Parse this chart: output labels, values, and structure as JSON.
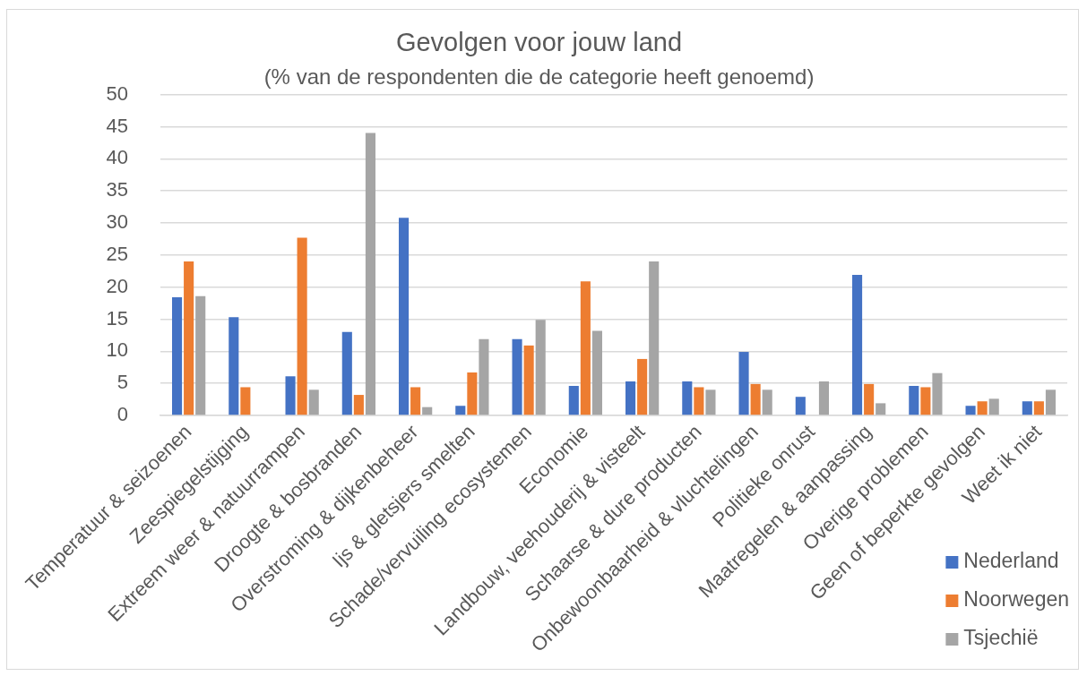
{
  "chart_data": {
    "type": "bar",
    "title": "Gevolgen voor jouw land",
    "subtitle": "(% van de respondenten die de categorie heeft genoemd)",
    "categories": [
      "Temperatuur & seizoenen",
      "Zeespiegelstijging",
      "Extreem weer & natuurrampen",
      "Droogte & bosbranden",
      "Overstroming & dijkenbeheer",
      "Ijs & gletsjers smelten",
      "Schade/vervuiling ecosystemen",
      "Economie",
      "Landbouw, veehouderij & visteelt",
      "Schaarse & dure producten",
      "Onbewoonbaarheid & vluchtelingen",
      "Politieke onrust",
      "Maatregelen & aanpassing",
      "Overige problemen",
      "Geen of beperkte gevolgen",
      "Weet ik niet"
    ],
    "series": [
      {
        "name": "Nederland",
        "color": "#4472c4",
        "values": [
          18.4,
          15.3,
          6.1,
          13.0,
          30.8,
          1.5,
          11.9,
          4.6,
          5.3,
          5.3,
          9.9,
          2.9,
          21.9,
          4.6,
          1.5,
          2.2
        ]
      },
      {
        "name": "Noorwegen",
        "color": "#ed7d31",
        "values": [
          24.0,
          4.4,
          27.7,
          3.2,
          4.4,
          6.7,
          10.9,
          20.9,
          8.8,
          4.4,
          4.9,
          null,
          4.9,
          4.4,
          2.2,
          2.2
        ]
      },
      {
        "name": "Tsjechië",
        "color": "#a5a5a5",
        "values": [
          18.6,
          null,
          4.0,
          44.0,
          1.3,
          11.9,
          14.9,
          13.2,
          24.0,
          4.0,
          4.0,
          5.3,
          1.9,
          6.6,
          2.6,
          4.0
        ]
      }
    ],
    "ylim": [
      0,
      50
    ],
    "yticks": [
      0,
      5,
      10,
      15,
      20,
      25,
      30,
      35,
      40,
      45,
      50
    ],
    "grid": "y",
    "legend": "bottom right"
  }
}
